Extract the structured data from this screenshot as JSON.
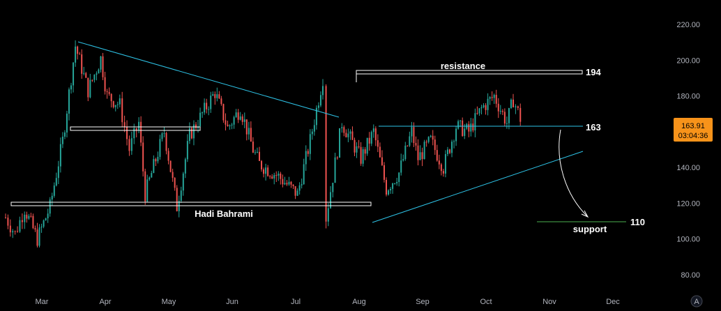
{
  "chart_data": {
    "type": "line",
    "title": "",
    "xlabel": "",
    "ylabel": "",
    "ylim": [
      75,
      228
    ],
    "y_ticks": [
      80,
      100,
      120,
      140,
      160,
      180,
      200,
      220
    ],
    "y_tick_labels": [
      "80.00",
      "100.00",
      "120.00",
      "140.00",
      "160.00",
      "180.00",
      "200.00",
      "220.00"
    ],
    "x_ticks": [
      "Mar",
      "Apr",
      "May",
      "Jun",
      "Jul",
      "Aug",
      "Sep",
      "Oct",
      "Nov",
      "Dec"
    ],
    "grid": false,
    "series": [
      {
        "color_up": "#26a69a",
        "color_down": "#ef5350",
        "x": [
          0,
          0.15,
          0.3,
          0.5,
          0.7,
          0.9,
          1.1,
          1.3,
          1.5,
          1.6,
          1.8,
          1.95,
          2.1,
          2.2,
          2.5,
          2.7,
          2.9,
          3.1,
          3.3,
          3.5,
          3.7,
          3.9,
          4.0,
          4.3,
          4.6,
          4.8,
          5.0,
          5.05,
          5.3,
          5.6,
          5.8,
          6.0,
          6.2,
          6.4,
          6.5,
          6.7,
          6.9,
          7.1,
          7.3,
          7.5,
          7.7,
          7.9,
          8.0,
          8.15
        ],
        "values": [
          112,
          103,
          117,
          100,
          118,
          155,
          208,
          183,
          201,
          180,
          175,
          150,
          165,
          125,
          160,
          118,
          158,
          170,
          182,
          162,
          173,
          150,
          142,
          135,
          125,
          155,
          190,
          112,
          165,
          145,
          160,
          128,
          137,
          160,
          145,
          155,
          140,
          163,
          160,
          173,
          180,
          165,
          178,
          163.91
        ]
      }
    ],
    "last_price": "163.91",
    "countdown": "03:04:36",
    "annotations": {
      "resistance_label": "resistance",
      "resistance_value": "194",
      "mid_value": "163",
      "support_label": "support",
      "support_value": "110",
      "author": "Hadi Bahrami"
    },
    "colors": {
      "trendline": "#2ec4e8",
      "box": "#ffffff",
      "support_line": "#4caf50",
      "badge": "#f7931a"
    },
    "auto_scale_label": "A"
  }
}
